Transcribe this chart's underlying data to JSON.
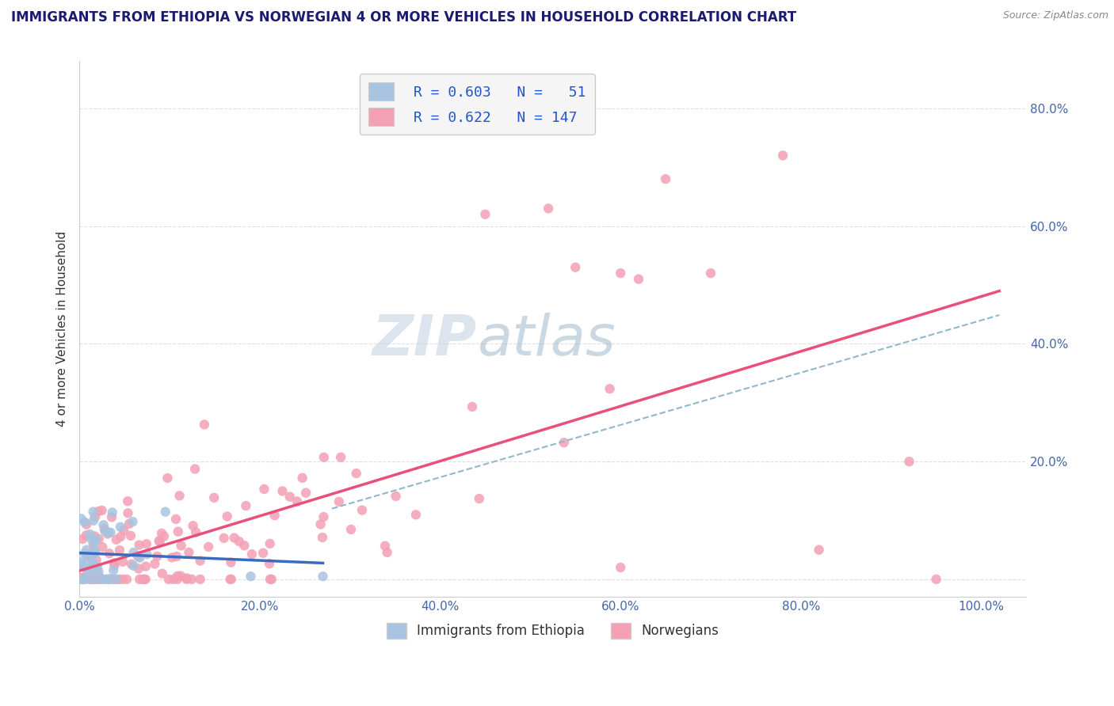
{
  "title": "IMMIGRANTS FROM ETHIOPIA VS NORWEGIAN 4 OR MORE VEHICLES IN HOUSEHOLD CORRELATION CHART",
  "source": "Source: ZipAtlas.com",
  "ylabel": "4 or more Vehicles in Household",
  "xlim": [
    0.0,
    1.05
  ],
  "ylim": [
    -0.03,
    0.88
  ],
  "yticks": [
    0.0,
    0.2,
    0.4,
    0.6,
    0.8
  ],
  "ytick_labels": [
    "",
    "20.0%",
    "40.0%",
    "60.0%",
    "80.0%"
  ],
  "xticks": [
    0.0,
    0.2,
    0.4,
    0.6,
    0.8,
    1.0
  ],
  "xtick_labels": [
    "0.0%",
    "20.0%",
    "40.0%",
    "60.0%",
    "80.0%",
    "100.0%"
  ],
  "legend_label1": "Immigrants from Ethiopia",
  "legend_label2": "Norwegians",
  "ethiopia_color": "#a8c4e0",
  "norwegian_color": "#f4a0b4",
  "ethiopia_line_color": "#3a6bbf",
  "norwegian_line_color": "#e8507a",
  "dash_color": "#90b8cc",
  "watermark_color": "#c8d8e8",
  "background_color": "#ffffff",
  "grid_color": "#e0e0e0",
  "title_color": "#1a1a6e",
  "source_color": "#888888",
  "tick_color": "#4466aa",
  "label_color": "#333333",
  "legend_text_color": "#2255cc"
}
